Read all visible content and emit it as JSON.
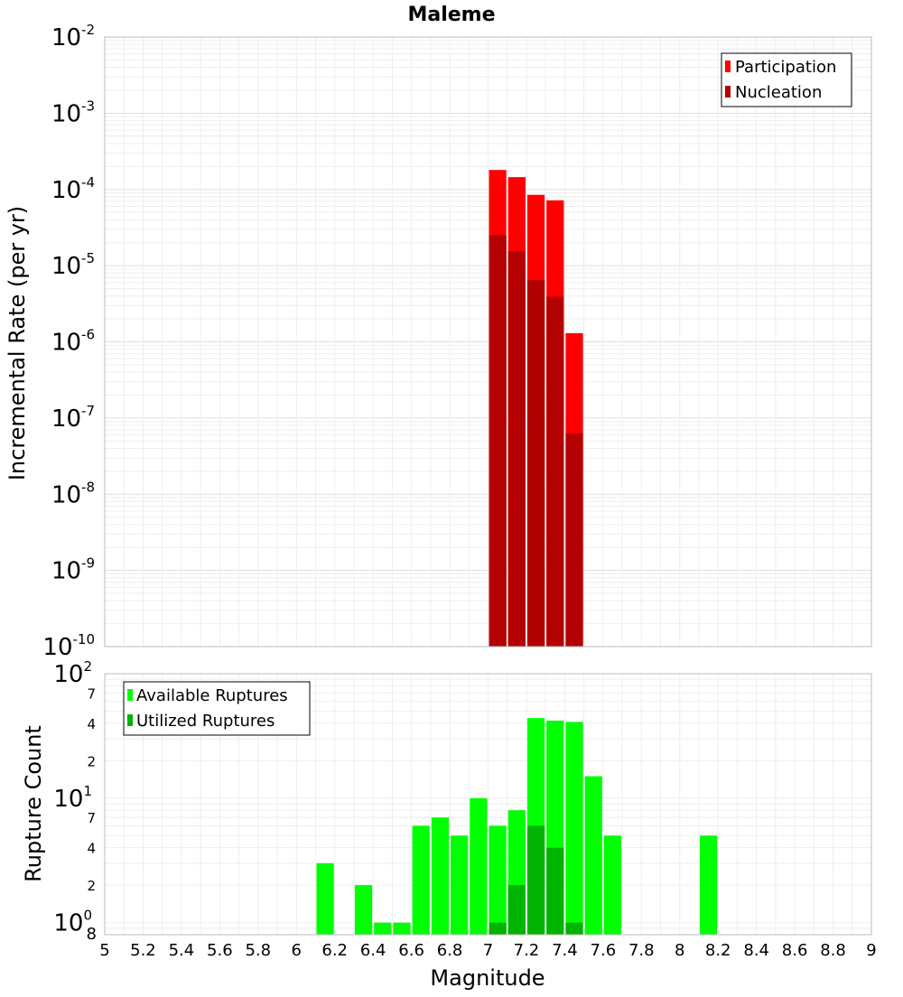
{
  "chart_data": [
    {
      "id": "top",
      "type": "bar",
      "title": "Maleme",
      "ylabel": "Incremental Rate (per yr)",
      "yscale": "log",
      "ylim_exp": [
        -10,
        -2
      ],
      "y_tick_labels": [
        {
          "base": "10",
          "exp": "-2",
          "v": -2
        },
        {
          "base": "10",
          "exp": "-3",
          "v": -3
        },
        {
          "base": "10",
          "exp": "-4",
          "v": -4
        },
        {
          "base": "10",
          "exp": "-5",
          "v": -5
        },
        {
          "base": "10",
          "exp": "-6",
          "v": -6
        },
        {
          "base": "10",
          "exp": "-7",
          "v": -7
        },
        {
          "base": "10",
          "exp": "-8",
          "v": -8
        },
        {
          "base": "10",
          "exp": "-9",
          "v": -9
        },
        {
          "base": "10",
          "exp": "-10",
          "v": -10
        }
      ],
      "legend": {
        "position": "top-right",
        "entries": [
          "Participation",
          "Nucleation"
        ]
      },
      "colors": {
        "Participation": "#ff0000",
        "Nucleation": "#b30000"
      },
      "series": [
        {
          "name": "Participation",
          "x": [
            7.05,
            7.15,
            7.25,
            7.35,
            7.45
          ],
          "values": [
            0.00018,
            0.000145,
            8.5e-05,
            7.2e-05,
            1.3e-06
          ]
        },
        {
          "name": "Nucleation",
          "x": [
            7.05,
            7.15,
            7.25,
            7.35,
            7.45
          ],
          "values": [
            2.5e-05,
            1.55e-05,
            6.5e-06,
            3.9e-06,
            6.3e-08
          ]
        }
      ]
    },
    {
      "id": "bottom",
      "type": "bar",
      "xlabel": "Magnitude",
      "ylabel": "Rupture Count",
      "yscale": "log",
      "ylim": [
        0.8,
        100
      ],
      "x_tick_labels": [
        "5",
        "5.2",
        "5.4",
        "5.6",
        "5.8",
        "6",
        "6.2",
        "6.4",
        "6.6",
        "6.8",
        "7",
        "7.2",
        "7.4",
        "7.6",
        "7.8",
        "8",
        "8.2",
        "8.4",
        "8.6",
        "8.8",
        "9"
      ],
      "xlim": [
        5,
        9
      ],
      "y_major_labels": [
        {
          "base": "10",
          "exp": "2",
          "v": 100
        },
        {
          "base": "10",
          "exp": "1",
          "v": 10
        },
        {
          "base": "10",
          "exp": "0",
          "v": 1
        }
      ],
      "y_minor_labels": [
        {
          "text": "7",
          "v": 70
        },
        {
          "text": "4",
          "v": 40
        },
        {
          "text": "2",
          "v": 20
        },
        {
          "text": "7",
          "v": 7
        },
        {
          "text": "4",
          "v": 4
        },
        {
          "text": "2",
          "v": 2
        },
        {
          "text": "8",
          "v": 0.8
        }
      ],
      "legend": {
        "position": "top-left",
        "entries": [
          "Available Ruptures",
          "Utilized Ruptures"
        ]
      },
      "colors": {
        "Available Ruptures": "#00ff00",
        "Utilized Ruptures": "#00b300"
      },
      "series": [
        {
          "name": "Available Ruptures",
          "x": [
            6.15,
            6.35,
            6.45,
            6.55,
            6.65,
            6.75,
            6.85,
            6.95,
            7.05,
            7.15,
            7.25,
            7.35,
            7.45,
            7.55,
            7.65,
            8.15
          ],
          "values": [
            3,
            2,
            1,
            1,
            6,
            7,
            5,
            10,
            6,
            8,
            44,
            42,
            41,
            15,
            5,
            5
          ]
        },
        {
          "name": "Utilized Ruptures",
          "x": [
            7.05,
            7.15,
            7.25,
            7.35,
            7.45
          ],
          "values": [
            1,
            2,
            6,
            4,
            1
          ]
        }
      ]
    }
  ]
}
